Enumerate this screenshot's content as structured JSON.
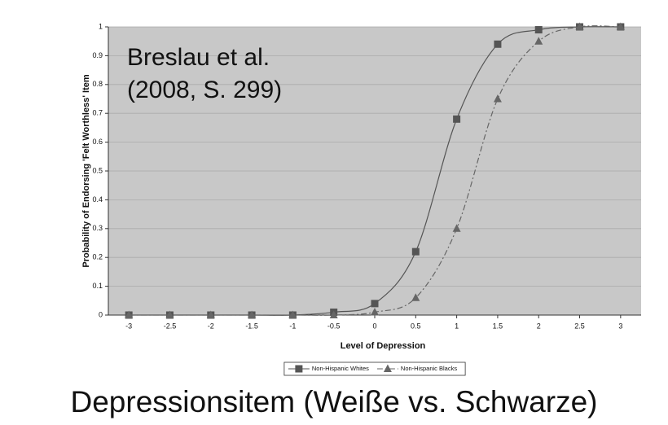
{
  "chart_data": {
    "type": "line",
    "annotation": [
      "Breslau et al.",
      "(2008, S. 299)"
    ],
    "x_label": "Level of Depression",
    "y_label": "Probability of Endorsing 'Felt Worthless' Item",
    "caption": "Depressionsitem (Weiße vs. Schwarze)",
    "x": [
      -3,
      -2.5,
      -2,
      -1.5,
      -1,
      -0.5,
      0,
      0.5,
      1,
      1.5,
      2,
      2.5,
      3
    ],
    "series": [
      {
        "name": "Non-Hispanic Whites",
        "color": "#555555",
        "marker": "square",
        "dash": "solid",
        "values": [
          0,
          0,
          0,
          0,
          0,
          0.01,
          0.04,
          0.22,
          0.68,
          0.94,
          0.99,
          1.0,
          1.0
        ]
      },
      {
        "name": "Non-Hispanic Blacks",
        "color": "#666666",
        "marker": "triangle",
        "dash": "dashdot",
        "values": [
          0,
          0,
          0,
          0,
          0,
          0,
          0.01,
          0.06,
          0.3,
          0.75,
          0.95,
          1.0,
          1.0
        ]
      }
    ],
    "xlim": [
      -3.25,
      3.25
    ],
    "ylim": [
      0,
      1
    ],
    "xticks": [
      -3,
      -2.5,
      -2,
      -1.5,
      -1,
      -0.5,
      0,
      0.5,
      1,
      1.5,
      2,
      2.5,
      3
    ],
    "yticks": [
      0,
      0.1,
      0.2,
      0.3,
      0.4,
      0.5,
      0.6,
      0.7,
      0.8,
      0.9,
      1
    ],
    "grid": true,
    "legend": "bottom",
    "background": "#c8c8c8"
  }
}
